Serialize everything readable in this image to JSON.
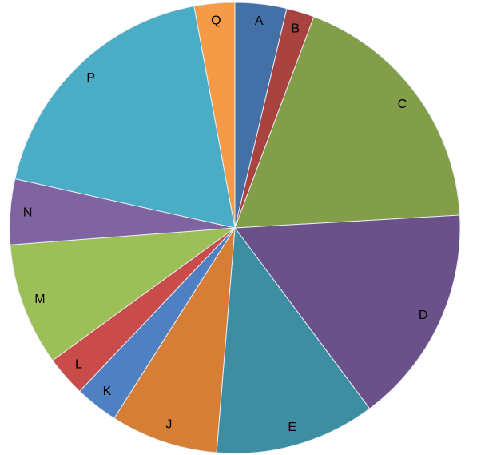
{
  "chart_data": {
    "type": "pie",
    "categories": [
      "A",
      "B",
      "C",
      "D",
      "E",
      "J",
      "K",
      "L",
      "M",
      "N",
      "P",
      "Q"
    ],
    "values": [
      3.7,
      2,
      18.4,
      15.7,
      11.5,
      7.7,
      3.1,
      2.9,
      8.8,
      4.7,
      18.6,
      2.9
    ],
    "colors": [
      "#4470a8",
      "#a84340",
      "#829e48",
      "#6a5189",
      "#3d8ea3",
      "#d67e35",
      "#4f80c2",
      "#c94c4a",
      "#9dbf57",
      "#8064a2",
      "#4aacc5",
      "#f59a47"
    ]
  }
}
